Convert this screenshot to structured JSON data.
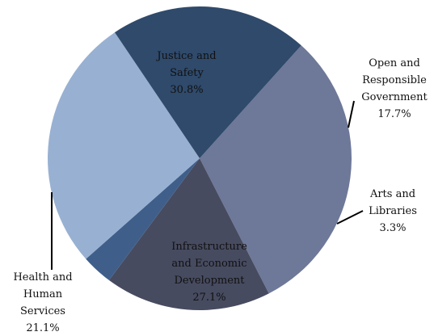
{
  "chart_data": {
    "type": "pie",
    "title": "",
    "slices": [
      {
        "label_lines": [
          "Justice and",
          "Safety"
        ],
        "value": 30.8,
        "value_text": "30.8%",
        "color": "#6e7898",
        "label_position": "inside"
      },
      {
        "label_lines": [
          "Open and",
          "Responsible",
          "Government"
        ],
        "value": 17.7,
        "value_text": "17.7%",
        "color": "#474b60",
        "label_position": "outside"
      },
      {
        "label_lines": [
          "Arts and",
          "Libraries"
        ],
        "value": 3.3,
        "value_text": "3.3%",
        "color": "#3f5f8a",
        "label_position": "outside"
      },
      {
        "label_lines": [
          "Infrastructure",
          "and Economic",
          "Development"
        ],
        "value": 27.1,
        "value_text": "27.1%",
        "color": "#98b1d2",
        "label_position": "inside"
      },
      {
        "label_lines": [
          "Health and",
          "Human",
          "Services"
        ],
        "value": 21.1,
        "value_text": "21.1%",
        "color": "#2f4a6b",
        "label_position": "outside"
      }
    ],
    "start_angle_deg": 42,
    "direction": "clockwise",
    "legend": "none"
  }
}
